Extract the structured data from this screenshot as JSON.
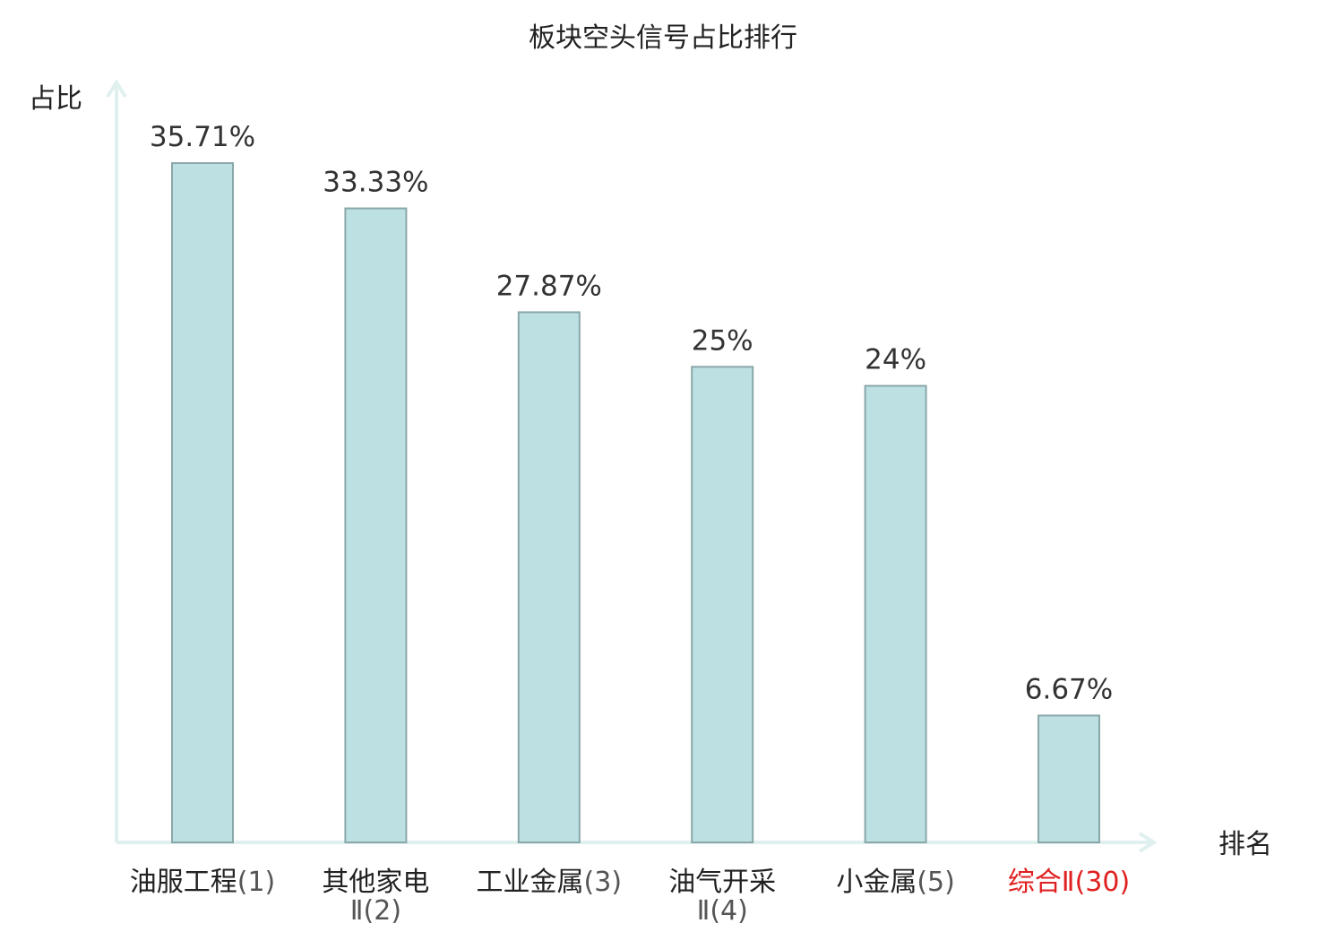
{
  "chart_data": {
    "type": "bar",
    "title": "板块空头信号占比排行",
    "ylabel": "占比",
    "xlabel": "排名",
    "ylim": [
      0,
      40
    ],
    "grid": false,
    "categories": [
      {
        "name": "油服工程",
        "rank": "(1)",
        "highlight": false
      },
      {
        "name": "其他家电",
        "rank": "Ⅱ(2)",
        "highlight": false
      },
      {
        "name": "工业金属",
        "rank": "(3)",
        "highlight": false
      },
      {
        "name": "油气开采",
        "rank": "Ⅱ(4)",
        "highlight": false
      },
      {
        "name": "小金属",
        "rank": "(5)",
        "highlight": false
      },
      {
        "name": "综合Ⅱ",
        "rank": "(30)",
        "highlight": true
      }
    ],
    "values": [
      35.71,
      33.33,
      27.87,
      25,
      24,
      6.67
    ],
    "value_labels": [
      "35.71%",
      "33.33%",
      "27.87%",
      "25%",
      "24%",
      "6.67%"
    ],
    "colors": {
      "bar_fill": "#bde1e3",
      "bar_stroke": "#8aa7a9",
      "axis": "#dff0ee",
      "highlight_text": "#e02020",
      "text": "#222222"
    }
  }
}
